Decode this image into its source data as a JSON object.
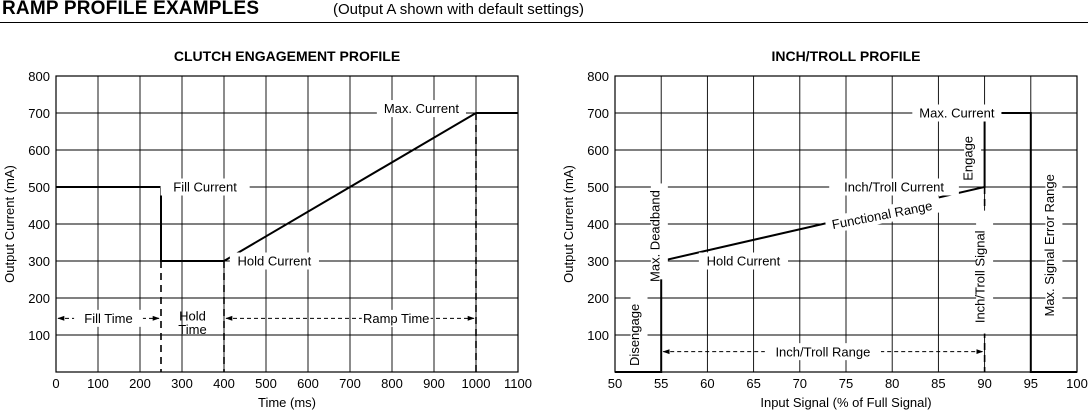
{
  "header": {
    "title": "RAMP PROFILE EXAMPLES",
    "subtitle": "(Output A shown with default settings)"
  },
  "chart_data": [
    {
      "type": "line",
      "title": "CLUTCH ENGAGEMENT PROFILE",
      "xlabel": "Time (ms)",
      "ylabel": "Output Current (mA)",
      "xlim": [
        0,
        1100
      ],
      "ylim": [
        0,
        800
      ],
      "x_ticks": [
        0,
        100,
        200,
        300,
        400,
        500,
        600,
        700,
        800,
        900,
        1000,
        1100
      ],
      "y_ticks": [
        100,
        200,
        300,
        400,
        500,
        600,
        700,
        800
      ],
      "grid": true,
      "series": [
        {
          "x": [
            0,
            250,
            250,
            400,
            1000,
            1100
          ],
          "y": [
            500,
            500,
            300,
            300,
            700,
            700
          ]
        }
      ],
      "annotations": {
        "max_current": "Max. Current",
        "fill_current": "Fill Current",
        "hold_current": "Hold Current",
        "fill_time": "Fill Time",
        "hold_time_line1": "Hold",
        "hold_time_line2": "Time",
        "ramp_time": "Ramp Time"
      }
    },
    {
      "type": "line",
      "title": "INCH/TROLL PROFILE",
      "xlabel": "Input Signal (% of Full Signal)",
      "ylabel": "Output Current (mA)",
      "xlim": [
        50,
        100
      ],
      "ylim": [
        0,
        800
      ],
      "x_ticks": [
        50,
        55,
        60,
        65,
        70,
        75,
        80,
        85,
        90,
        95,
        100
      ],
      "y_ticks": [
        100,
        200,
        300,
        400,
        500,
        600,
        700,
        800
      ],
      "grid": true,
      "series": [
        {
          "x": [
            50,
            55,
            55,
            90,
            90,
            95,
            95,
            100
          ],
          "y": [
            0,
            0,
            300,
            500,
            700,
            700,
            0,
            0
          ]
        }
      ],
      "annotations": {
        "max_current": "Max. Current",
        "inch_troll_current": "Inch/Troll Current",
        "functional_range": "Functional Range",
        "hold_current": "Hold Current",
        "inch_troll_range": "Inch/Troll Range",
        "disengage": "Disengage",
        "max_deadband": "Max. Deadband",
        "engage": "Engage",
        "inch_troll_signal": "Inch/Troll Signal",
        "max_signal_error_range": "Max. Signal Error Range"
      }
    }
  ]
}
